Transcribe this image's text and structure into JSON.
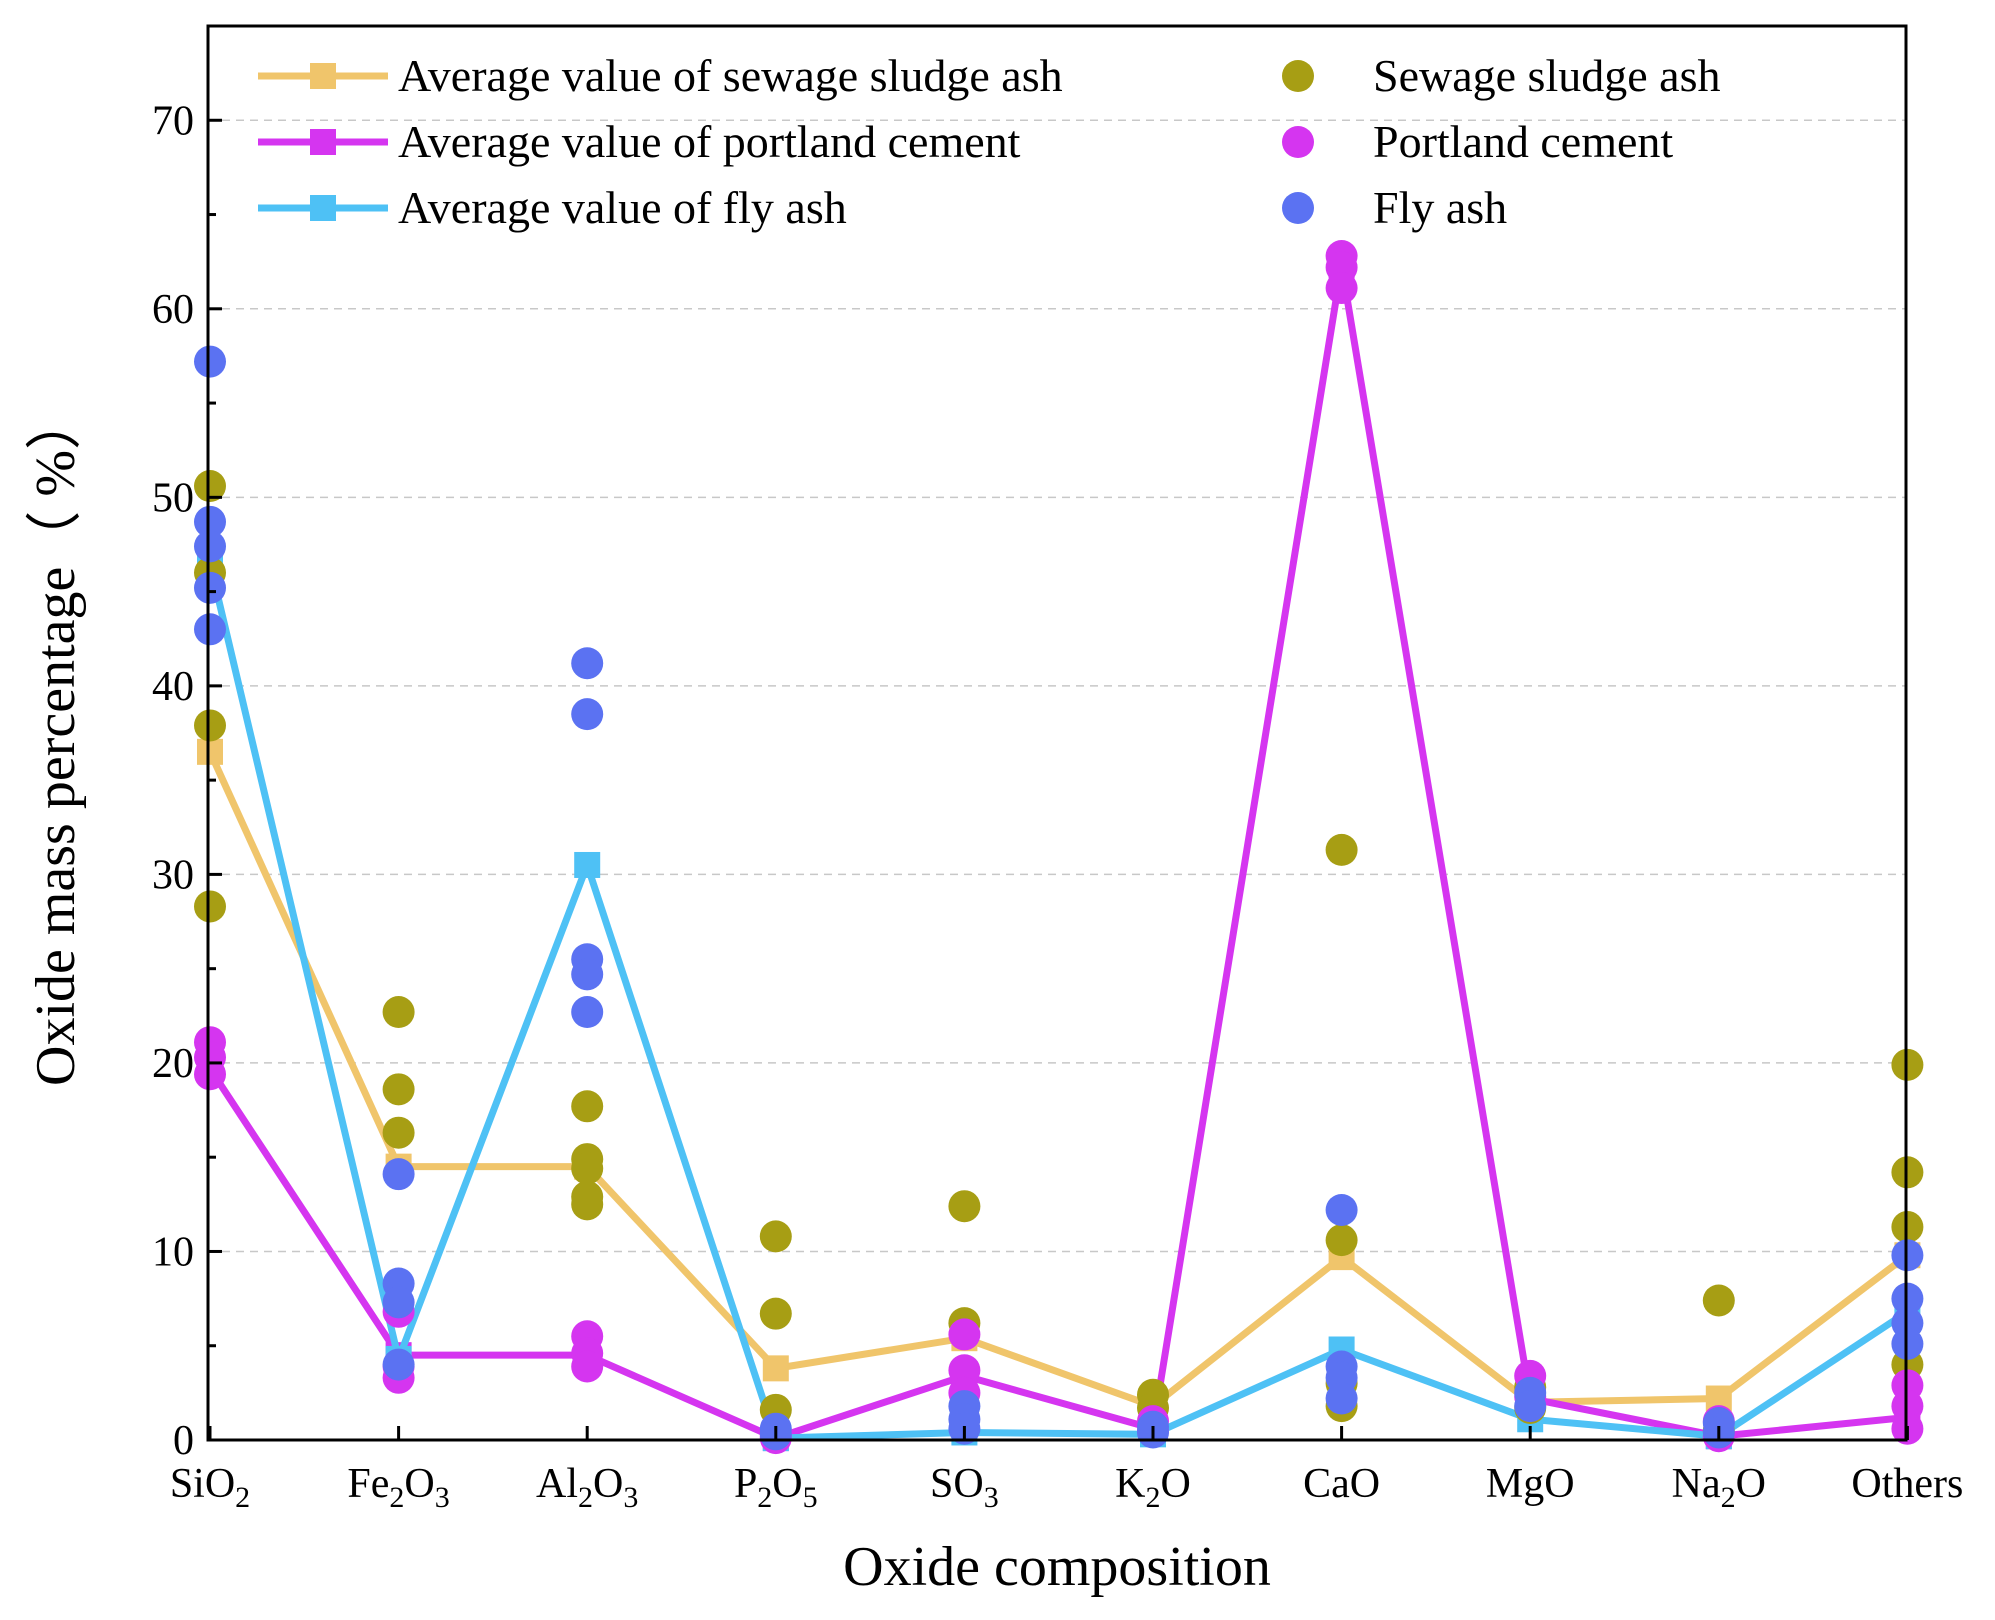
{
  "chart_data": {
    "type": "line",
    "title": "",
    "xlabel": "Oxide composition",
    "ylabel": "Oxide mass percentage（ %）",
    "ylim": [
      0,
      75
    ],
    "yticks": [
      0,
      10,
      20,
      30,
      40,
      50,
      60,
      70
    ],
    "grid": "horizontal dashed",
    "legend_position": "top",
    "categories": [
      {
        "base": "SiO",
        "sub": "2",
        "after": "",
        "sub2": ""
      },
      {
        "base": "Fe",
        "sub": "2",
        "after": "O",
        "sub2": "3"
      },
      {
        "base": "Al",
        "sub": "2",
        "after": "O",
        "sub2": "3"
      },
      {
        "base": "P",
        "sub": "2",
        "after": "O",
        "sub2": "5"
      },
      {
        "base": "SO",
        "sub": "3",
        "after": "",
        "sub2": ""
      },
      {
        "base": "K",
        "sub": "2",
        "after": "O",
        "sub2": ""
      },
      {
        "base": "CaO",
        "sub": "",
        "after": "",
        "sub2": ""
      },
      {
        "base": "MgO",
        "sub": "",
        "after": "",
        "sub2": ""
      },
      {
        "base": "Na",
        "sub": "2",
        "after": "O",
        "sub2": ""
      },
      {
        "base": "Others",
        "sub": "",
        "after": "",
        "sub2": ""
      }
    ],
    "lines": [
      {
        "name": "Average value of sewage sludge ash",
        "color": "#F0C56B",
        "values": [
          36.5,
          14.5,
          14.5,
          3.8,
          5.4,
          1.8,
          9.7,
          2.0,
          2.2,
          9.8
        ]
      },
      {
        "name": "Average value of portland cement",
        "color": "#D535F0",
        "values": [
          19.7,
          4.5,
          4.5,
          0.1,
          3.4,
          0.6,
          62.3,
          2.2,
          0.2,
          1.2
        ]
      },
      {
        "name": "Average value of fly ash",
        "color": "#4EC1F5",
        "values": [
          46.5,
          4.3,
          30.5,
          0.1,
          0.4,
          0.3,
          4.8,
          1.1,
          0.2,
          6.8
        ]
      }
    ],
    "scatter": [
      {
        "name": "Sewage sludge ash",
        "color": "#A79E14",
        "points": [
          [
            0,
            50.6
          ],
          [
            0,
            46.0
          ],
          [
            0,
            37.9
          ],
          [
            0,
            28.3
          ],
          [
            1,
            22.7
          ],
          [
            1,
            18.6
          ],
          [
            1,
            16.3
          ],
          [
            2,
            17.7
          ],
          [
            2,
            14.9
          ],
          [
            2,
            14.4
          ],
          [
            2,
            12.9
          ],
          [
            2,
            12.5
          ],
          [
            3,
            10.8
          ],
          [
            3,
            6.7
          ],
          [
            3,
            1.6
          ],
          [
            4,
            12.4
          ],
          [
            4,
            6.2
          ],
          [
            5,
            2.4
          ],
          [
            5,
            1.7
          ],
          [
            6,
            31.3
          ],
          [
            6,
            10.6
          ],
          [
            6,
            3.0
          ],
          [
            6,
            1.8
          ],
          [
            7,
            2.8
          ],
          [
            7,
            1.7
          ],
          [
            8,
            7.4
          ],
          [
            8,
            0.5
          ],
          [
            9,
            19.9
          ],
          [
            9,
            14.2
          ],
          [
            9,
            11.3
          ],
          [
            9,
            4.0
          ]
        ]
      },
      {
        "name": "Portland cement",
        "color": "#D535F0",
        "points": [
          [
            0,
            21.1
          ],
          [
            0,
            20.3
          ],
          [
            0,
            19.4
          ],
          [
            1,
            6.8
          ],
          [
            1,
            3.9
          ],
          [
            1,
            3.3
          ],
          [
            2,
            5.5
          ],
          [
            2,
            4.6
          ],
          [
            2,
            3.9
          ],
          [
            3,
            0.2
          ],
          [
            3,
            0.1
          ],
          [
            4,
            5.6
          ],
          [
            4,
            3.7
          ],
          [
            4,
            2.5
          ],
          [
            5,
            1.0
          ],
          [
            5,
            0.5
          ],
          [
            6,
            62.8
          ],
          [
            6,
            62.2
          ],
          [
            6,
            61.1
          ],
          [
            7,
            3.4
          ],
          [
            7,
            2.3
          ],
          [
            8,
            1.0
          ],
          [
            8,
            0.2
          ],
          [
            9,
            2.9
          ],
          [
            9,
            1.8
          ],
          [
            9,
            0.6
          ]
        ]
      },
      {
        "name": "Fly ash",
        "color": "#5B72F2",
        "points": [
          [
            0,
            57.2
          ],
          [
            0,
            48.7
          ],
          [
            0,
            47.4
          ],
          [
            0,
            45.2
          ],
          [
            0,
            43.0
          ],
          [
            1,
            14.1
          ],
          [
            1,
            8.3
          ],
          [
            1,
            7.3
          ],
          [
            1,
            4.0
          ],
          [
            2,
            41.2
          ],
          [
            2,
            38.5
          ],
          [
            2,
            25.5
          ],
          [
            2,
            24.7
          ],
          [
            2,
            22.7
          ],
          [
            3,
            0.6
          ],
          [
            3,
            0.3
          ],
          [
            4,
            1.8
          ],
          [
            4,
            1.1
          ],
          [
            4,
            0.6
          ],
          [
            5,
            0.7
          ],
          [
            5,
            0.4
          ],
          [
            6,
            12.2
          ],
          [
            6,
            3.9
          ],
          [
            6,
            3.3
          ],
          [
            6,
            2.2
          ],
          [
            7,
            2.5
          ],
          [
            7,
            1.8
          ],
          [
            8,
            0.9
          ],
          [
            8,
            0.4
          ],
          [
            9,
            9.8
          ],
          [
            9,
            7.5
          ],
          [
            9,
            6.2
          ],
          [
            9,
            5.1
          ]
        ]
      }
    ]
  }
}
